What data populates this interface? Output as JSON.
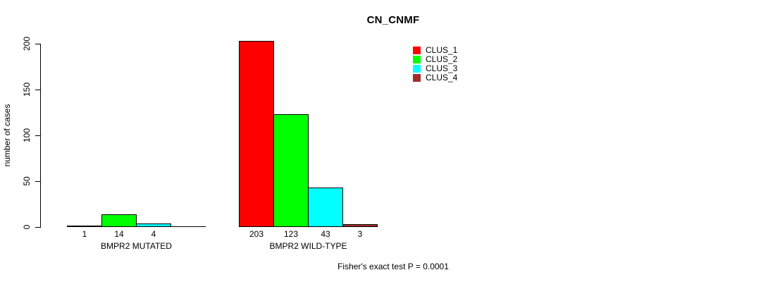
{
  "chart_data": {
    "type": "bar",
    "title": "CN_CNMF",
    "ylabel": "number of cases",
    "ylim": [
      0,
      200
    ],
    "yticks": [
      0,
      50,
      100,
      150,
      200
    ],
    "grid": false,
    "categories": [
      "BMPR2 MUTATED",
      "BMPR2 WILD-TYPE"
    ],
    "series": [
      {
        "name": "CLUS_1",
        "color": "#FF0000",
        "values": [
          1,
          203
        ]
      },
      {
        "name": "CLUS_2",
        "color": "#00FF00",
        "values": [
          14,
          123
        ]
      },
      {
        "name": "CLUS_3",
        "color": "#00FFFF",
        "values": [
          4,
          43
        ]
      },
      {
        "name": "CLUS_4",
        "color": "#A52A2A",
        "values": [
          0,
          3
        ]
      }
    ],
    "bar_labels": [
      [
        "1",
        "14",
        "4",
        ""
      ],
      [
        "203",
        "123",
        "43",
        "3"
      ]
    ],
    "legend_position": "top-right",
    "legend_entries": [
      "CLUS_1",
      "CLUS_2",
      "CLUS_3",
      "CLUS_4"
    ],
    "annotation": "Fisher's exact test P = 0.0001"
  }
}
